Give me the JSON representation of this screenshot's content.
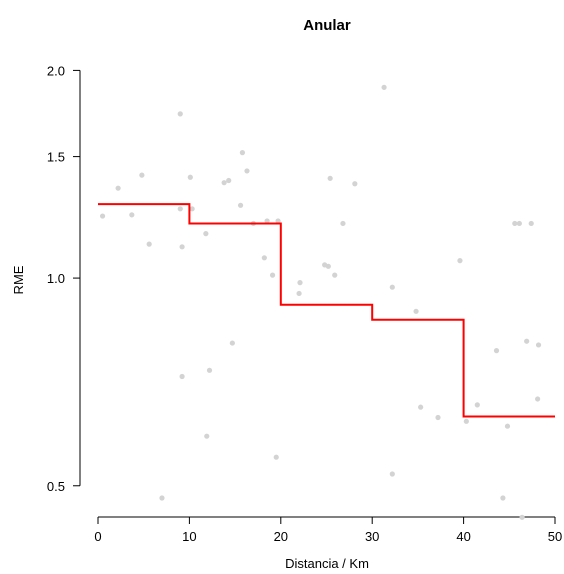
{
  "chart_data": {
    "type": "scatter",
    "title": "Anular",
    "xlabel": "Distancia / Km",
    "ylabel": "RME",
    "xlim": [
      -4,
      51
    ],
    "ylim": [
      0.48,
      2.05
    ],
    "y_scale": "log",
    "x_ticks": [
      0,
      10,
      20,
      30,
      40,
      50
    ],
    "x_tick_labels": [
      "0",
      "10",
      "20",
      "30",
      "40",
      "50"
    ],
    "y_ticks": [
      0.5,
      1.0,
      1.5,
      2.0
    ],
    "y_tick_labels": [
      "0.5",
      "1.0",
      "1.5",
      "2.0"
    ],
    "grid": false,
    "point_color": "#d3d3d3",
    "step_color": "#ff0000",
    "points": [
      {
        "x": 0.5,
        "y": 1.23
      },
      {
        "x": 2.2,
        "y": 1.35
      },
      {
        "x": 3.7,
        "y": 1.235
      },
      {
        "x": 4.8,
        "y": 1.41
      },
      {
        "x": 5.6,
        "y": 1.12
      },
      {
        "x": 7.0,
        "y": 0.48
      },
      {
        "x": 9.0,
        "y": 1.73
      },
      {
        "x": 9.0,
        "y": 1.26
      },
      {
        "x": 9.2,
        "y": 1.11
      },
      {
        "x": 9.2,
        "y": 0.72
      },
      {
        "x": 10.1,
        "y": 1.4
      },
      {
        "x": 10.3,
        "y": 1.26
      },
      {
        "x": 11.8,
        "y": 1.16
      },
      {
        "x": 11.9,
        "y": 0.59
      },
      {
        "x": 12.2,
        "y": 0.735
      },
      {
        "x": 13.8,
        "y": 1.375
      },
      {
        "x": 14.3,
        "y": 1.385
      },
      {
        "x": 14.7,
        "y": 0.805
      },
      {
        "x": 15.6,
        "y": 1.275
      },
      {
        "x": 15.8,
        "y": 1.52
      },
      {
        "x": 16.3,
        "y": 1.43
      },
      {
        "x": 17.0,
        "y": 1.2
      },
      {
        "x": 18.2,
        "y": 1.07
      },
      {
        "x": 18.5,
        "y": 1.21
      },
      {
        "x": 19.1,
        "y": 1.01
      },
      {
        "x": 19.5,
        "y": 0.55
      },
      {
        "x": 19.7,
        "y": 1.21
      },
      {
        "x": 22.0,
        "y": 0.95
      },
      {
        "x": 22.1,
        "y": 0.985
      },
      {
        "x": 24.8,
        "y": 1.045
      },
      {
        "x": 25.2,
        "y": 1.04
      },
      {
        "x": 25.4,
        "y": 1.395
      },
      {
        "x": 25.9,
        "y": 1.01
      },
      {
        "x": 26.8,
        "y": 1.2
      },
      {
        "x": 28.1,
        "y": 1.37
      },
      {
        "x": 31.3,
        "y": 1.89
      },
      {
        "x": 32.2,
        "y": 0.97
      },
      {
        "x": 32.2,
        "y": 0.52
      },
      {
        "x": 34.8,
        "y": 0.895
      },
      {
        "x": 35.3,
        "y": 0.65
      },
      {
        "x": 37.2,
        "y": 0.628
      },
      {
        "x": 39.6,
        "y": 1.06
      },
      {
        "x": 40.3,
        "y": 0.62
      },
      {
        "x": 41.5,
        "y": 0.655
      },
      {
        "x": 43.6,
        "y": 0.785
      },
      {
        "x": 44.3,
        "y": 0.48
      },
      {
        "x": 44.8,
        "y": 0.61
      },
      {
        "x": 45.6,
        "y": 1.2
      },
      {
        "x": 46.1,
        "y": 1.2
      },
      {
        "x": 46.4,
        "y": 0.45
      },
      {
        "x": 46.9,
        "y": 0.81
      },
      {
        "x": 47.4,
        "y": 1.2
      },
      {
        "x": 48.1,
        "y": 0.668
      },
      {
        "x": 48.2,
        "y": 0.8
      }
    ],
    "step_line": [
      {
        "x0": 0,
        "x1": 10,
        "y": 1.28
      },
      {
        "x0": 10,
        "x1": 20,
        "y": 1.2
      },
      {
        "x0": 20,
        "x1": 30,
        "y": 0.915
      },
      {
        "x0": 30,
        "x1": 40,
        "y": 0.87
      },
      {
        "x0": 40,
        "x1": 50,
        "y": 0.63
      }
    ]
  }
}
